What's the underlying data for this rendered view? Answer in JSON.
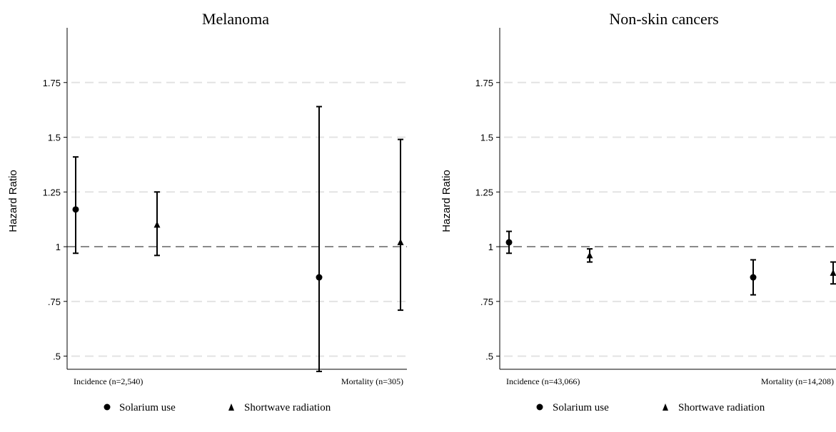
{
  "chart_data": [
    {
      "type": "scatter",
      "title": "Melanoma",
      "ylabel": "Hazard Ratio",
      "ylim": [
        0.44,
        2.0
      ],
      "yticks": [
        ".5",
        ".75",
        "1",
        "1.25",
        "1.5",
        "1.75"
      ],
      "yticks_values": [
        0.5,
        0.75,
        1,
        1.25,
        1.5,
        1.75
      ],
      "grid": true,
      "reference_line": 1,
      "categories": [
        "Incidence (n=2,540)",
        "Mortality  (n=305)"
      ],
      "series": [
        {
          "name": "Solarium use",
          "marker": "circle",
          "points": [
            {
              "category": "Incidence (n=2,540)",
              "estimate": 1.17,
              "lower": 0.97,
              "upper": 1.41
            },
            {
              "category": "Mortality  (n=305)",
              "estimate": 0.86,
              "lower": 0.43,
              "upper": 1.64
            }
          ]
        },
        {
          "name": "Shortwave radiation",
          "marker": "triangle",
          "points": [
            {
              "category": "Incidence (n=2,540)",
              "estimate": 1.1,
              "lower": 0.96,
              "upper": 1.25
            },
            {
              "category": "Mortality  (n=305)",
              "estimate": 1.02,
              "lower": 0.71,
              "upper": 1.49
            }
          ]
        }
      ],
      "legend": {
        "position": "bottom",
        "items": [
          "Solarium use",
          "Shortwave radiation"
        ]
      }
    },
    {
      "type": "scatter",
      "title": "Non-skin cancers",
      "ylabel": "Hazard Ratio",
      "ylim": [
        0.44,
        2.0
      ],
      "yticks": [
        ".5",
        ".75",
        "1",
        "1.25",
        "1.5",
        "1.75"
      ],
      "yticks_values": [
        0.5,
        0.75,
        1,
        1.25,
        1.5,
        1.75
      ],
      "grid": true,
      "reference_line": 1,
      "categories": [
        "Incidence (n=43,066)",
        "Mortality  (n=14,208)"
      ],
      "series": [
        {
          "name": "Solarium use",
          "marker": "circle",
          "points": [
            {
              "category": "Incidence (n=43,066)",
              "estimate": 1.02,
              "lower": 0.97,
              "upper": 1.07
            },
            {
              "category": "Mortality  (n=14,208)",
              "estimate": 0.86,
              "lower": 0.78,
              "upper": 0.94
            }
          ]
        },
        {
          "name": "Shortwave radiation",
          "marker": "triangle",
          "points": [
            {
              "category": "Incidence (n=43,066)",
              "estimate": 0.96,
              "lower": 0.93,
              "upper": 0.99
            },
            {
              "category": "Mortality  (n=14,208)",
              "estimate": 0.88,
              "lower": 0.83,
              "upper": 0.93
            }
          ]
        }
      ],
      "legend": {
        "position": "bottom",
        "items": [
          "Solarium use",
          "Shortwave radiation"
        ]
      }
    }
  ]
}
